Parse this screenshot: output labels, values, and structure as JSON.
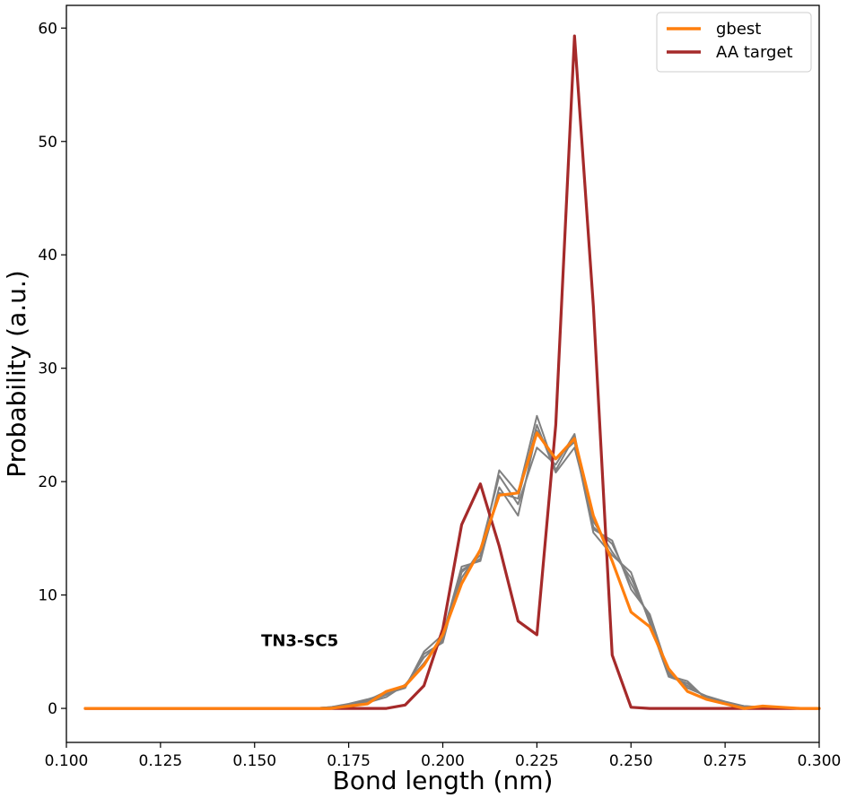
{
  "chart_data": {
    "type": "line",
    "title": "",
    "xlabel": "Bond length (nm)",
    "ylabel": "Probability (a.u.)",
    "xlim": [
      0.1,
      0.3
    ],
    "ylim": [
      -3,
      62
    ],
    "xticks": [
      "0.100",
      "0.125",
      "0.150",
      "0.175",
      "0.200",
      "0.225",
      "0.250",
      "0.275",
      "0.300"
    ],
    "yticks": [
      "0",
      "10",
      "20",
      "30",
      "40",
      "50",
      "60"
    ],
    "grid": false,
    "legend": {
      "placement": "top-right",
      "entries": [
        "gbest",
        "AA target"
      ]
    },
    "annotation": "TN3-SC5",
    "colors": {
      "gbest": "#ff7f0e",
      "aa_target": "#a52a2a",
      "replicas": "#808080"
    },
    "x": [
      0.105,
      0.11,
      0.115,
      0.12,
      0.125,
      0.13,
      0.135,
      0.14,
      0.145,
      0.15,
      0.155,
      0.16,
      0.165,
      0.17,
      0.175,
      0.18,
      0.185,
      0.19,
      0.195,
      0.2,
      0.205,
      0.21,
      0.215,
      0.22,
      0.225,
      0.23,
      0.235,
      0.24,
      0.245,
      0.25,
      0.255,
      0.26,
      0.265,
      0.27,
      0.275,
      0.28,
      0.285,
      0.29,
      0.295,
      0.3
    ],
    "series": [
      {
        "name": "",
        "role": "replica",
        "values": [
          0,
          0,
          0,
          0,
          0,
          0,
          0,
          0,
          0,
          0,
          0,
          0,
          0,
          0.1,
          0.3,
          0.6,
          1.2,
          2.0,
          4.5,
          6.0,
          12.0,
          13.5,
          21.0,
          19.0,
          25.8,
          21.0,
          24.0,
          16.0,
          14.5,
          11.0,
          8.0,
          3.0,
          2.0,
          1.0,
          0.5,
          0.2,
          0.1,
          0.1,
          0,
          0
        ]
      },
      {
        "name": "",
        "role": "replica",
        "values": [
          0,
          0,
          0,
          0,
          0,
          0,
          0,
          0,
          0,
          0,
          0,
          0,
          0,
          0.1,
          0.4,
          0.8,
          1.3,
          1.8,
          5.0,
          6.5,
          12.5,
          13.0,
          19.5,
          17.0,
          24.5,
          22.0,
          23.5,
          15.5,
          13.5,
          12.0,
          7.5,
          2.8,
          2.2,
          0.9,
          0.4,
          0.1,
          0.1,
          0.1,
          0,
          0
        ]
      },
      {
        "name": "",
        "role": "replica",
        "values": [
          0,
          0,
          0,
          0,
          0,
          0,
          0,
          0,
          0,
          0,
          0,
          0,
          0,
          0,
          0.2,
          0.5,
          1.0,
          2.1,
          4.0,
          6.2,
          11.5,
          14.0,
          20.5,
          18.0,
          23.0,
          21.5,
          24.2,
          15.8,
          14.8,
          10.5,
          8.3,
          3.2,
          1.8,
          1.1,
          0.6,
          0.2,
          0.1,
          0,
          0,
          0
        ]
      },
      {
        "name": "",
        "role": "replica",
        "values": [
          0,
          0,
          0,
          0,
          0,
          0,
          0,
          0,
          0,
          0,
          0,
          0,
          0,
          0.1,
          0.3,
          0.7,
          1.5,
          1.9,
          4.8,
          5.8,
          12.2,
          13.2,
          19.0,
          18.5,
          25.0,
          20.8,
          23.0,
          16.5,
          13.8,
          11.5,
          7.8,
          2.9,
          2.4,
          0.8,
          0.5,
          0.1,
          0.1,
          0.1,
          0,
          0
        ]
      },
      {
        "name": "gbest",
        "role": "gbest",
        "values": [
          0,
          0,
          0,
          0,
          0,
          0,
          0,
          0,
          0,
          0,
          0,
          0,
          0,
          0,
          0.2,
          0.4,
          1.5,
          2.0,
          3.8,
          6.5,
          11.0,
          14.0,
          18.8,
          19.0,
          24.3,
          22.0,
          23.8,
          17.0,
          13.0,
          8.5,
          7.2,
          3.5,
          1.5,
          0.8,
          0.4,
          0,
          0.2,
          0.1,
          0,
          0
        ]
      },
      {
        "name": "AA target",
        "role": "aa",
        "values": [
          0,
          0,
          0,
          0,
          0,
          0,
          0,
          0,
          0,
          0,
          0,
          0,
          0,
          0,
          0,
          0,
          0,
          0.3,
          2.0,
          7.0,
          16.2,
          19.8,
          14.3,
          7.7,
          6.5,
          25.0,
          59.3,
          35.5,
          4.7,
          0.1,
          0,
          0,
          0,
          0,
          0,
          0,
          0,
          0,
          0,
          0
        ]
      }
    ]
  }
}
